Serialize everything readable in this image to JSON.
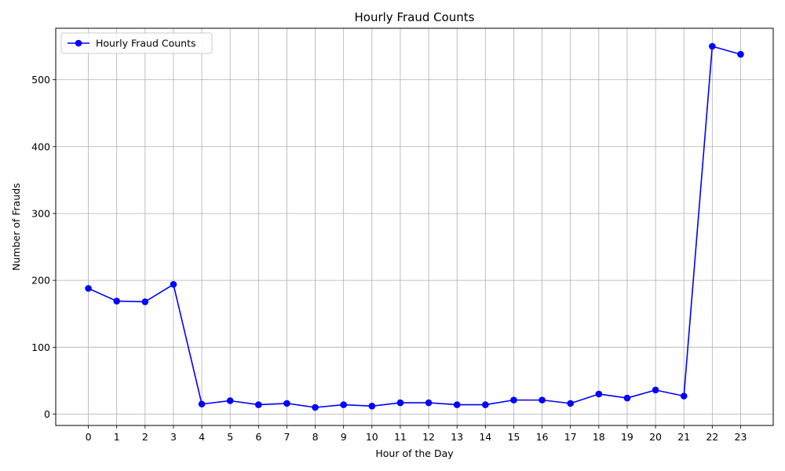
{
  "chart_data": {
    "type": "line",
    "title": "Hourly Fraud Counts",
    "xlabel": "Hour of the Day",
    "ylabel": "Number of Frauds",
    "x": [
      0,
      1,
      2,
      3,
      4,
      5,
      6,
      7,
      8,
      9,
      10,
      11,
      12,
      13,
      14,
      15,
      16,
      17,
      18,
      19,
      20,
      21,
      22,
      23
    ],
    "xticks": [
      "0",
      "1",
      "2",
      "3",
      "4",
      "5",
      "6",
      "7",
      "8",
      "9",
      "10",
      "11",
      "12",
      "13",
      "14",
      "15",
      "16",
      "17",
      "18",
      "19",
      "20",
      "21",
      "22",
      "23"
    ],
    "yticks": [
      0,
      100,
      200,
      300,
      400,
      500
    ],
    "ylim": [
      -17,
      577
    ],
    "xlim": [
      -1.15,
      24.15
    ],
    "grid": true,
    "legend_position": "top-left",
    "series": [
      {
        "name": "Hourly Fraud Counts",
        "color": "#0000ff",
        "marker": "circle",
        "values": [
          188,
          169,
          168,
          194,
          15,
          20,
          14,
          16,
          10,
          14,
          12,
          17,
          17,
          14,
          14,
          21,
          21,
          16,
          30,
          24,
          36,
          27,
          550,
          538
        ]
      }
    ]
  }
}
